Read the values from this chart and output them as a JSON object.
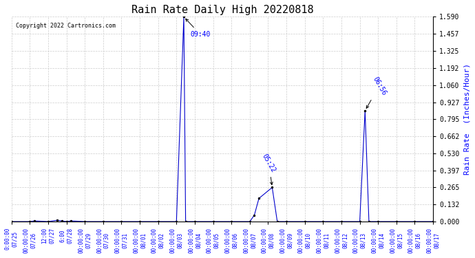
{
  "title": "Rain Rate Daily High 20220818",
  "copyright": "Copyright 2022 Cartronics.com",
  "ylabel": "Rain Rate  (Inches/Hour)",
  "line_color": "#0000cc",
  "background_color": "#ffffff",
  "grid_color": "#cccccc",
  "ylim": [
    0.0,
    1.59
  ],
  "yticks": [
    0.0,
    0.132,
    0.265,
    0.397,
    0.53,
    0.662,
    0.795,
    0.927,
    1.06,
    1.192,
    1.325,
    1.457,
    1.59
  ],
  "peak1_label": "09:40",
  "peak2_label": "05:22",
  "peak3_label": "06:56",
  "data_points": [
    {
      "date": "2022-07-25",
      "hour": 0,
      "value": 0.0
    },
    {
      "date": "2022-07-26",
      "hour": 0,
      "value": 0.0
    },
    {
      "date": "2022-07-26",
      "hour": 6,
      "value": 0.005
    },
    {
      "date": "2022-07-27",
      "hour": 0,
      "value": 0.0
    },
    {
      "date": "2022-07-27",
      "hour": 12,
      "value": 0.01
    },
    {
      "date": "2022-07-27",
      "hour": 18,
      "value": 0.005
    },
    {
      "date": "2022-07-28",
      "hour": 0,
      "value": 0.0
    },
    {
      "date": "2022-07-28",
      "hour": 6,
      "value": 0.005
    },
    {
      "date": "2022-07-29",
      "hour": 0,
      "value": 0.0
    },
    {
      "date": "2022-07-30",
      "hour": 0,
      "value": 0.0
    },
    {
      "date": "2022-07-31",
      "hour": 0,
      "value": 0.0
    },
    {
      "date": "2022-08-01",
      "hour": 0,
      "value": 0.0
    },
    {
      "date": "2022-08-02",
      "hour": 0,
      "value": 0.0
    },
    {
      "date": "2022-08-03",
      "hour": 0,
      "value": 0.0
    },
    {
      "date": "2022-08-03",
      "hour": 9.667,
      "value": 1.59
    },
    {
      "date": "2022-08-03",
      "hour": 12,
      "value": 0.0
    },
    {
      "date": "2022-08-04",
      "hour": 0,
      "value": 0.0
    },
    {
      "date": "2022-08-05",
      "hour": 0,
      "value": 0.0
    },
    {
      "date": "2022-08-06",
      "hour": 0,
      "value": 0.0
    },
    {
      "date": "2022-08-07",
      "hour": 0,
      "value": 0.0
    },
    {
      "date": "2022-08-07",
      "hour": 6,
      "value": 0.05
    },
    {
      "date": "2022-08-07",
      "hour": 12,
      "value": 0.18
    },
    {
      "date": "2022-08-08",
      "hour": 5.367,
      "value": 0.265
    },
    {
      "date": "2022-08-08",
      "hour": 12,
      "value": 0.0
    },
    {
      "date": "2022-08-09",
      "hour": 0,
      "value": 0.0
    },
    {
      "date": "2022-08-10",
      "hour": 0,
      "value": 0.0
    },
    {
      "date": "2022-08-11",
      "hour": 0,
      "value": 0.0
    },
    {
      "date": "2022-08-12",
      "hour": 0,
      "value": 0.0
    },
    {
      "date": "2022-08-13",
      "hour": 0,
      "value": 0.0
    },
    {
      "date": "2022-08-13",
      "hour": 6.933,
      "value": 0.862
    },
    {
      "date": "2022-08-13",
      "hour": 12,
      "value": 0.0
    },
    {
      "date": "2022-08-14",
      "hour": 0,
      "value": 0.0
    },
    {
      "date": "2022-08-15",
      "hour": 0,
      "value": 0.0
    },
    {
      "date": "2022-08-16",
      "hour": 0,
      "value": 0.0
    },
    {
      "date": "2022-08-17",
      "hour": 0,
      "value": 0.0
    }
  ],
  "x_date_labels": [
    "07/25",
    "07/26",
    "07/27",
    "07/28",
    "07/29",
    "07/30",
    "07/31",
    "08/01",
    "08/02",
    "08/03",
    "08/04",
    "08/05",
    "08/06",
    "08/07",
    "08/08",
    "08/09",
    "08/10",
    "08/11",
    "08/12",
    "08/13",
    "08/14",
    "08/15",
    "08/16",
    "08/17"
  ],
  "x_time_labels": [
    "0:00:00",
    "0:00:00",
    "12:00",
    "6:00",
    "0:00:00",
    "0:00:00",
    "0:00:00",
    "0:00:00",
    "0:00:00",
    "0:00:00",
    "0:00:00",
    "0:00:00",
    "0:00:00",
    "0:00:00",
    "0:00:00",
    "0:00:00",
    "0:00:00",
    "0:00:00",
    "0:00:00",
    "0:00:00",
    "0:00:00",
    "0:00:00",
    "0:00:00",
    "0:00:00"
  ]
}
